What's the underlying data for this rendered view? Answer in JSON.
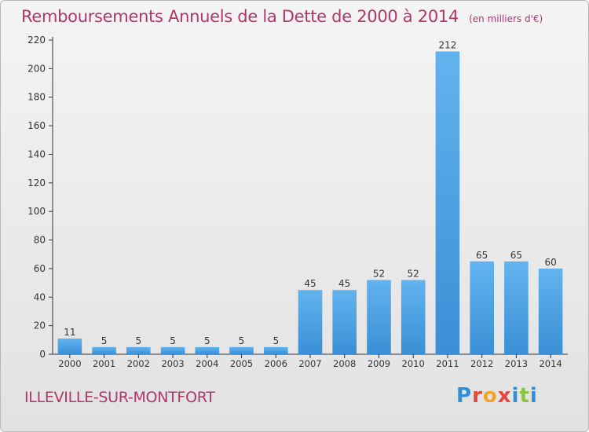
{
  "chart_data": {
    "type": "bar",
    "title": "Remboursements Annuels de la Dette de 2000 à 2014",
    "subtitle": "(en milliers d'€)",
    "categories": [
      "2000",
      "2001",
      "2002",
      "2003",
      "2004",
      "2005",
      "2006",
      "2007",
      "2008",
      "2009",
      "2010",
      "2011",
      "2012",
      "2013",
      "2014"
    ],
    "values": [
      11,
      5,
      5,
      5,
      5,
      5,
      5,
      45,
      45,
      52,
      52,
      212,
      65,
      65,
      60
    ],
    "ylim": [
      0,
      220
    ],
    "yticks": [
      0,
      20,
      40,
      60,
      80,
      100,
      120,
      140,
      160,
      180,
      200,
      220
    ],
    "xlabel": "",
    "ylabel": "",
    "grid": false,
    "bar_color": "#3a8fd6",
    "bar_color_light": "#62b3ee",
    "title_color": "#b1366a"
  },
  "footer": {
    "commune": "ILLEVILLE-SUR-MONTFORT",
    "logo_text": "Proxiti",
    "logo_letters": [
      {
        "ch": "P",
        "color": "#2f8fd8"
      },
      {
        "ch": "r",
        "color": "#e4473b"
      },
      {
        "ch": "o",
        "color": "#f2a32b"
      },
      {
        "ch": "x",
        "color": "#e4473b"
      },
      {
        "ch": "i",
        "color": "#2f8fd8"
      },
      {
        "ch": "t",
        "color": "#8cc43e"
      },
      {
        "ch": "i",
        "color": "#2f8fd8"
      }
    ]
  }
}
